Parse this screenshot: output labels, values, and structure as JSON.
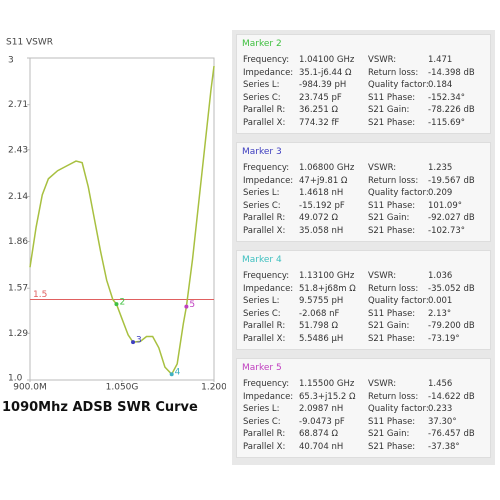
{
  "chart_data": {
    "type": "line",
    "title": "S11 VSWR",
    "x": [
      900,
      910,
      920,
      930,
      945,
      960,
      975,
      985,
      995,
      1005,
      1015,
      1025,
      1035,
      1041,
      1050,
      1060,
      1068,
      1080,
      1090,
      1100,
      1110,
      1120,
      1131,
      1140,
      1150,
      1155,
      1165,
      1175,
      1185,
      1195,
      1200
    ],
    "series": [
      {
        "name": "S11 VSWR",
        "color": "#a8c040",
        "values": [
          1.7,
          1.95,
          2.15,
          2.25,
          2.3,
          2.33,
          2.36,
          2.35,
          2.2,
          2.0,
          1.8,
          1.62,
          1.5,
          1.471,
          1.38,
          1.28,
          1.235,
          1.24,
          1.27,
          1.27,
          1.2,
          1.08,
          1.036,
          1.1,
          1.35,
          1.456,
          1.75,
          2.1,
          2.45,
          2.8,
          2.95
        ]
      }
    ],
    "xlim": [
      900,
      1200
    ],
    "xticks": [
      {
        "value": 900,
        "label": "900.0M"
      },
      {
        "value": 1050,
        "label": "1.050G"
      },
      {
        "value": 1200,
        "label": "1.200"
      }
    ],
    "ylim": [
      1,
      3
    ],
    "yticks": [
      {
        "value": 1,
        "label": "1.0"
      },
      1.29,
      1.57,
      1.86,
      2.14,
      2.43,
      2.71,
      3
    ],
    "reference_line": {
      "value": 1.5,
      "label": "1.5",
      "color": "#e06060"
    },
    "markers": [
      {
        "label": "2",
        "x": 1041,
        "y": 1.471,
        "color": "#40c040"
      },
      {
        "label": "3",
        "x": 1068,
        "y": 1.235,
        "color": "#4040c0"
      },
      {
        "label": "4",
        "x": 1131,
        "y": 1.036,
        "color": "#40b0c0"
      },
      {
        "label": "5",
        "x": 1155,
        "y": 1.456,
        "color": "#c040c0"
      }
    ]
  },
  "caption": "1090Mhz ADSB SWR Curve",
  "panels": [
    {
      "title": "Marker 2",
      "color": "#40c040",
      "rows": [
        [
          "Frequency:",
          "1.04100 GHz",
          "VSWR:",
          "1.471"
        ],
        [
          "Impedance:",
          "35.1-j6.44 Ω",
          "Return loss:",
          "-14.398 dB"
        ],
        [
          "Series L:",
          "-984.39 pH",
          "Quality factor:",
          "0.184"
        ],
        [
          "Series C:",
          "23.745 pF",
          "S11 Phase:",
          "-152.34°"
        ],
        [
          "Parallel R:",
          "36.251 Ω",
          "S21 Gain:",
          "-78.226 dB"
        ],
        [
          "Parallel X:",
          "774.32 fF",
          "S21 Phase:",
          "-115.69°"
        ]
      ]
    },
    {
      "title": "Marker 3",
      "color": "#4040c0",
      "rows": [
        [
          "Frequency:",
          "1.06800 GHz",
          "VSWR:",
          "1.235"
        ],
        [
          "Impedance:",
          "47+j9.81 Ω",
          "Return loss:",
          "-19.567 dB"
        ],
        [
          "Series L:",
          "1.4618 nH",
          "Quality factor:",
          "0.209"
        ],
        [
          "Series C:",
          "-15.192 pF",
          "S11 Phase:",
          "101.09°"
        ],
        [
          "Parallel R:",
          "49.072 Ω",
          "S21 Gain:",
          "-92.027 dB"
        ],
        [
          "Parallel X:",
          "35.058 nH",
          "S21 Phase:",
          "-102.73°"
        ]
      ]
    },
    {
      "title": "Marker 4",
      "color": "#40c0c0",
      "rows": [
        [
          "Frequency:",
          "1.13100 GHz",
          "VSWR:",
          "1.036"
        ],
        [
          "Impedance:",
          "51.8+j68m Ω",
          "Return loss:",
          "-35.052 dB"
        ],
        [
          "Series L:",
          "9.5755 pH",
          "Quality factor:",
          "0.001"
        ],
        [
          "Series C:",
          "-2.068 nF",
          "S11 Phase:",
          "2.13°"
        ],
        [
          "Parallel R:",
          "51.798 Ω",
          "S21 Gain:",
          "-79.200 dB"
        ],
        [
          "Parallel X:",
          "5.5486 μH",
          "S21 Phase:",
          "-73.19°"
        ]
      ]
    },
    {
      "title": "Marker 5",
      "color": "#c040c0",
      "rows": [
        [
          "Frequency:",
          "1.15500 GHz",
          "VSWR:",
          "1.456"
        ],
        [
          "Impedance:",
          "65.3+j15.2 Ω",
          "Return loss:",
          "-14.622 dB"
        ],
        [
          "Series L:",
          "2.0987 nH",
          "Quality factor:",
          "0.233"
        ],
        [
          "Series C:",
          "-9.0473 pF",
          "S11 Phase:",
          "37.30°"
        ],
        [
          "Parallel R:",
          "68.874 Ω",
          "S21 Gain:",
          "-76.457 dB"
        ],
        [
          "Parallel X:",
          "40.704 nH",
          "S21 Phase:",
          "-37.38°"
        ]
      ]
    }
  ]
}
